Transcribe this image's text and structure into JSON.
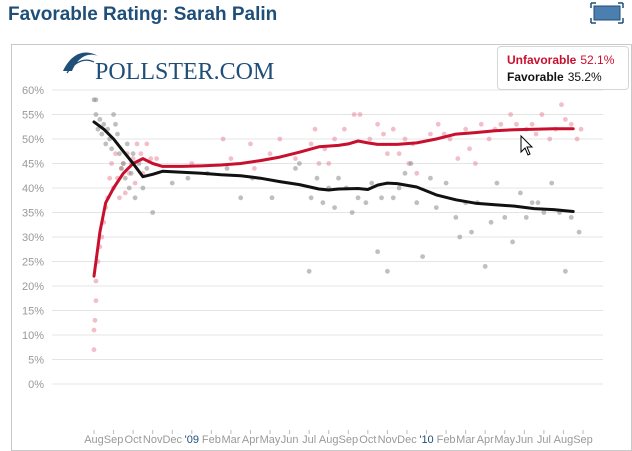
{
  "page": {
    "title": "Favorable Rating: Sarah Palin",
    "logo_text": "POLLSTER.COM"
  },
  "legend": {
    "items": [
      {
        "name": "Unfavorable",
        "value": "52.1%",
        "color": "#c8102e"
      },
      {
        "name": "Favorable",
        "value": "35.2%",
        "color": "#111111"
      }
    ]
  },
  "chart_data": {
    "type": "scatter",
    "title": "Favorable Rating: Sarah Palin",
    "xlabel": "",
    "ylabel": "",
    "ylim": [
      0,
      60
    ],
    "y_ticks": [
      "0%",
      "5%",
      "10%",
      "15%",
      "20%",
      "25%",
      "30%",
      "35%",
      "40%",
      "45%",
      "50%",
      "55%",
      "60%"
    ],
    "x_ticks": [
      "Aug",
      "Sep",
      "Oct",
      "Nov",
      "Dec",
      "'09",
      "Feb",
      "Mar",
      "Apr",
      "May",
      "Jun",
      "Jul",
      "Aug",
      "Sep",
      "Oct",
      "Nov",
      "Dec",
      "'10",
      "Feb",
      "Mar",
      "Apr",
      "May",
      "Jun",
      "Jul",
      "Aug",
      "Sep"
    ],
    "x_tick_index": [
      0,
      1,
      2,
      3,
      4,
      5,
      6,
      7,
      8,
      9,
      10,
      11,
      12,
      13,
      14,
      15,
      16,
      17,
      18,
      19,
      20,
      21,
      22,
      23,
      24,
      25
    ],
    "grid": true,
    "series": [
      {
        "name": "Unfavorable",
        "color": "#c8102e",
        "trend": [
          [
            0.0,
            22
          ],
          [
            0.3,
            31
          ],
          [
            0.6,
            37
          ],
          [
            1.0,
            40
          ],
          [
            1.5,
            43
          ],
          [
            2.0,
            45
          ],
          [
            2.5,
            46
          ],
          [
            3.0,
            45
          ],
          [
            3.5,
            44.4
          ],
          [
            4.5,
            44.4
          ],
          [
            5.5,
            44.5
          ],
          [
            6.5,
            44.7
          ],
          [
            7.5,
            45
          ],
          [
            8.5,
            45.6
          ],
          [
            9.5,
            46.3
          ],
          [
            10.5,
            47.3
          ],
          [
            11.5,
            48.4
          ],
          [
            12.5,
            48.7
          ],
          [
            13.0,
            49.0
          ],
          [
            13.5,
            49.6
          ],
          [
            14.0,
            49.2
          ],
          [
            14.5,
            48.9
          ],
          [
            15.5,
            48.9
          ],
          [
            16.5,
            49.2
          ],
          [
            17.5,
            50.0
          ],
          [
            18.5,
            51.0
          ],
          [
            19.5,
            51.3
          ],
          [
            20.5,
            51.7
          ],
          [
            21.5,
            51.9
          ],
          [
            22.5,
            52.0
          ],
          [
            23.5,
            52.1
          ],
          [
            24.5,
            52.1
          ]
        ],
        "polls": [
          [
            0.0,
            7
          ],
          [
            0.0,
            11
          ],
          [
            0.05,
            13
          ],
          [
            0.1,
            17
          ],
          [
            0.1,
            21
          ],
          [
            0.2,
            25
          ],
          [
            0.3,
            28
          ],
          [
            0.4,
            30
          ],
          [
            0.5,
            33
          ],
          [
            0.6,
            36
          ],
          [
            0.7,
            38
          ],
          [
            0.8,
            42
          ],
          [
            0.9,
            45
          ],
          [
            1.0,
            40
          ],
          [
            1.1,
            47
          ],
          [
            1.2,
            42
          ],
          [
            1.3,
            38
          ],
          [
            1.4,
            44
          ],
          [
            1.5,
            45
          ],
          [
            1.6,
            39
          ],
          [
            1.7,
            47
          ],
          [
            1.8,
            43
          ],
          [
            1.9,
            45
          ],
          [
            2.0,
            46
          ],
          [
            2.1,
            41
          ],
          [
            2.2,
            49
          ],
          [
            2.4,
            47
          ],
          [
            2.5,
            43
          ],
          [
            2.7,
            49
          ],
          [
            2.9,
            46
          ],
          [
            3.2,
            46
          ],
          [
            5.0,
            45
          ],
          [
            6.6,
            50
          ],
          [
            7.0,
            46
          ],
          [
            8.0,
            49
          ],
          [
            8.2,
            44
          ],
          [
            9.0,
            47
          ],
          [
            9.5,
            50
          ],
          [
            10.3,
            46
          ],
          [
            11.1,
            49
          ],
          [
            11.3,
            52
          ],
          [
            11.5,
            45
          ],
          [
            11.8,
            48
          ],
          [
            12.0,
            45
          ],
          [
            12.3,
            50
          ],
          [
            12.8,
            52
          ],
          [
            13.3,
            55
          ],
          [
            13.6,
            55
          ],
          [
            14.1,
            50
          ],
          [
            14.5,
            53
          ],
          [
            14.8,
            51
          ],
          [
            15.0,
            47
          ],
          [
            15.3,
            52
          ],
          [
            15.6,
            47
          ],
          [
            15.9,
            50
          ],
          [
            16.1,
            45
          ],
          [
            16.3,
            49
          ],
          [
            16.5,
            43
          ],
          [
            17.2,
            51
          ],
          [
            17.6,
            53
          ],
          [
            17.9,
            51
          ],
          [
            18.2,
            50
          ],
          [
            18.6,
            46
          ],
          [
            19.0,
            52
          ],
          [
            19.2,
            48
          ],
          [
            19.5,
            45
          ],
          [
            19.8,
            53
          ],
          [
            20.2,
            50
          ],
          [
            20.5,
            52
          ],
          [
            20.8,
            53
          ],
          [
            21.3,
            55
          ],
          [
            21.6,
            53
          ],
          [
            22.1,
            52
          ],
          [
            22.4,
            53
          ],
          [
            22.6,
            51
          ],
          [
            22.9,
            55
          ],
          [
            23.3,
            50
          ],
          [
            23.6,
            52
          ],
          [
            23.9,
            57
          ],
          [
            24.1,
            54
          ],
          [
            24.4,
            53
          ],
          [
            24.7,
            50
          ],
          [
            24.9,
            52
          ]
        ]
      },
      {
        "name": "Favorable",
        "color": "#111111",
        "trend": [
          [
            0.0,
            53.5
          ],
          [
            0.5,
            52
          ],
          [
            1.0,
            50
          ],
          [
            1.5,
            47.5
          ],
          [
            2.0,
            45
          ],
          [
            2.5,
            42.3
          ],
          [
            3.0,
            42.8
          ],
          [
            3.5,
            43.4
          ],
          [
            4.5,
            43.2
          ],
          [
            5.5,
            43.0
          ],
          [
            6.5,
            42.7
          ],
          [
            7.5,
            42.5
          ],
          [
            8.5,
            42.0
          ],
          [
            9.5,
            41.3
          ],
          [
            10.5,
            40.7
          ],
          [
            11.5,
            39.8
          ],
          [
            12.0,
            39.6
          ],
          [
            12.5,
            39.8
          ],
          [
            13.5,
            39.9
          ],
          [
            14.0,
            39.7
          ],
          [
            14.5,
            40.6
          ],
          [
            15.0,
            41.0
          ],
          [
            15.5,
            40.9
          ],
          [
            16.5,
            40.2
          ],
          [
            17.5,
            38.6
          ],
          [
            18.5,
            37.6
          ],
          [
            19.5,
            36.9
          ],
          [
            20.5,
            36.6
          ],
          [
            21.5,
            36.3
          ],
          [
            22.5,
            35.8
          ],
          [
            23.5,
            35.6
          ],
          [
            24.5,
            35.2
          ]
        ],
        "polls": [
          [
            0.0,
            58
          ],
          [
            0.1,
            58
          ],
          [
            0.1,
            55
          ],
          [
            0.2,
            52
          ],
          [
            0.3,
            54
          ],
          [
            0.4,
            51
          ],
          [
            0.5,
            53
          ],
          [
            0.6,
            49
          ],
          [
            0.7,
            52
          ],
          [
            0.8,
            50
          ],
          [
            0.9,
            48
          ],
          [
            1.0,
            55
          ],
          [
            1.1,
            53
          ],
          [
            1.2,
            51
          ],
          [
            1.3,
            47
          ],
          [
            1.4,
            44
          ],
          [
            1.5,
            45
          ],
          [
            1.6,
            42
          ],
          [
            1.7,
            49
          ],
          [
            1.8,
            40
          ],
          [
            1.9,
            43
          ],
          [
            2.0,
            47
          ],
          [
            2.1,
            38
          ],
          [
            2.3,
            45
          ],
          [
            2.5,
            40
          ],
          [
            2.7,
            44
          ],
          [
            3.0,
            35
          ],
          [
            4.0,
            41
          ],
          [
            4.8,
            42
          ],
          [
            5.8,
            43
          ],
          [
            6.8,
            44
          ],
          [
            7.5,
            38
          ],
          [
            8.1,
            42
          ],
          [
            9.1,
            38
          ],
          [
            10.3,
            44
          ],
          [
            10.5,
            45
          ],
          [
            11.0,
            23
          ],
          [
            11.1,
            38
          ],
          [
            11.4,
            42
          ],
          [
            11.7,
            37
          ],
          [
            12.0,
            40
          ],
          [
            12.3,
            36
          ],
          [
            12.5,
            42
          ],
          [
            12.9,
            40
          ],
          [
            13.2,
            35
          ],
          [
            13.5,
            38
          ],
          [
            13.9,
            37
          ],
          [
            14.2,
            41
          ],
          [
            14.5,
            27
          ],
          [
            14.7,
            38
          ],
          [
            15.0,
            23
          ],
          [
            15.3,
            38
          ],
          [
            15.6,
            40
          ],
          [
            15.9,
            43
          ],
          [
            16.2,
            45
          ],
          [
            16.5,
            37
          ],
          [
            16.8,
            26
          ],
          [
            17.2,
            42
          ],
          [
            17.5,
            36
          ],
          [
            18.0,
            41
          ],
          [
            18.5,
            34
          ],
          [
            18.7,
            30
          ],
          [
            19.0,
            37
          ],
          [
            19.3,
            31
          ],
          [
            19.6,
            37
          ],
          [
            20.0,
            24
          ],
          [
            20.3,
            33
          ],
          [
            20.6,
            41
          ],
          [
            21.0,
            34
          ],
          [
            21.4,
            29
          ],
          [
            21.8,
            39
          ],
          [
            22.1,
            34
          ],
          [
            22.4,
            37
          ],
          [
            22.7,
            37
          ],
          [
            23.0,
            35
          ],
          [
            23.4,
            41
          ],
          [
            23.8,
            35
          ],
          [
            24.1,
            23
          ],
          [
            24.4,
            34
          ],
          [
            24.8,
            31
          ]
        ]
      }
    ]
  }
}
